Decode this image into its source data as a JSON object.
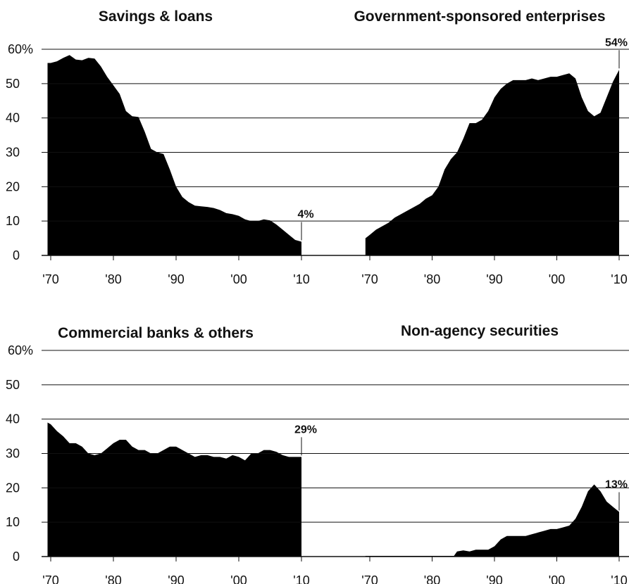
{
  "chart_data": [
    {
      "type": "area",
      "title": "Savings & loans",
      "ylabels": [
        "0",
        "10",
        "20",
        "30",
        "40",
        "50",
        "60%"
      ],
      "yticks": [
        0,
        10,
        20,
        30,
        40,
        50,
        60
      ],
      "ylim": [
        0,
        60
      ],
      "xlim": [
        1969,
        2010.5
      ],
      "xticks": [
        1970,
        1980,
        1990,
        2000,
        2010
      ],
      "xticklabels": [
        "'70",
        "'80",
        "'90",
        "'00",
        "'10"
      ],
      "x": [
        1969.5,
        1970,
        1971,
        1972,
        1973,
        1974,
        1975,
        1976,
        1977,
        1978,
        1979,
        1980,
        1981,
        1982,
        1983,
        1984,
        1985,
        1986,
        1987,
        1988,
        1989,
        1990,
        1991,
        1992,
        1993,
        1994,
        1995,
        1996,
        1997,
        1998,
        1999,
        2000,
        2001,
        2002,
        2003,
        2004,
        2005,
        2006,
        2007,
        2008,
        2009,
        2010
      ],
      "y": [
        56,
        56,
        56.5,
        57.5,
        58.3,
        57,
        56.8,
        57.5,
        57.3,
        55,
        52,
        49.5,
        47,
        42,
        40.5,
        40.3,
        36,
        31,
        30,
        29.5,
        25,
        20,
        17,
        15.5,
        14.5,
        14.3,
        14.1,
        13.8,
        13.2,
        12.3,
        12,
        11.5,
        10.5,
        10,
        10,
        10.5,
        10.2,
        9,
        7.5,
        6,
        4.5,
        4
      ],
      "annotation": {
        "label": "4%",
        "x": 2010,
        "y": 4
      }
    },
    {
      "type": "area",
      "title": "Government-sponsored enterprises",
      "ylim": [
        0,
        60
      ],
      "xlim": [
        1969,
        2010.5
      ],
      "xticks": [
        1970,
        1980,
        1990,
        2000,
        2010
      ],
      "xticklabels": [
        "'70",
        "'80",
        "'90",
        "'00",
        "'10"
      ],
      "x": [
        1969.3,
        1970,
        1971,
        1972,
        1973,
        1974,
        1975,
        1976,
        1977,
        1978,
        1979,
        1980,
        1981,
        1982,
        1983,
        1984,
        1985,
        1986,
        1987,
        1988,
        1989,
        1990,
        1991,
        1992,
        1993,
        1994,
        1995,
        1996,
        1997,
        1998,
        1999,
        2000,
        2001,
        2002,
        2003,
        2004,
        2005,
        2006,
        2007,
        2008,
        2009,
        2010
      ],
      "y": [
        5,
        6,
        7.5,
        8.5,
        9.5,
        11,
        12,
        13,
        14,
        15,
        16.5,
        17.5,
        20,
        25,
        28,
        30,
        34,
        38.5,
        38.5,
        39.5,
        42,
        46,
        48.5,
        50,
        51,
        51,
        51,
        51.5,
        51,
        51.5,
        52,
        52,
        52.5,
        53,
        51.5,
        46,
        42,
        40.5,
        41.5,
        46,
        50.5,
        54
      ],
      "annotation": {
        "label": "54%",
        "x": 2010,
        "y": 54
      }
    },
    {
      "type": "area",
      "title": "Commercial banks & others",
      "ylabels": [
        "0",
        "10",
        "20",
        "30",
        "40",
        "50",
        "60%"
      ],
      "yticks": [
        0,
        10,
        20,
        30,
        40,
        50,
        60
      ],
      "ylim": [
        0,
        60
      ],
      "xlim": [
        1969,
        2010.5
      ],
      "xticks": [
        1970,
        1980,
        1990,
        2000,
        2010
      ],
      "xticklabels": [
        "'70",
        "'80",
        "'90",
        "'00",
        "'10"
      ],
      "x": [
        1969.5,
        1970,
        1971,
        1972,
        1973,
        1974,
        1975,
        1976,
        1977,
        1978,
        1979,
        1980,
        1981,
        1982,
        1983,
        1984,
        1985,
        1986,
        1987,
        1988,
        1989,
        1990,
        1991,
        1992,
        1993,
        1994,
        1995,
        1996,
        1997,
        1998,
        1999,
        2000,
        2001,
        2002,
        2003,
        2004,
        2005,
        2006,
        2007,
        2008,
        2009,
        2010
      ],
      "y": [
        39,
        38.5,
        36.5,
        35,
        33,
        33,
        32,
        30,
        29.5,
        30,
        31.5,
        33,
        34,
        34,
        32,
        31,
        31,
        30,
        30,
        31,
        32,
        32,
        31,
        30,
        29,
        29.5,
        29.5,
        29,
        29,
        28.5,
        29.5,
        29,
        28,
        30,
        30,
        31,
        31,
        30.5,
        29.5,
        29,
        29,
        29
      ],
      "annotation": {
        "label": "29%",
        "x": 2010,
        "y": 29
      }
    },
    {
      "type": "area",
      "title": "Non-agency securities",
      "ylim": [
        0,
        60
      ],
      "xlim": [
        1969,
        2010.5
      ],
      "xticks": [
        1970,
        1980,
        1990,
        2000,
        2010
      ],
      "xticklabels": [
        "'70",
        "'80",
        "'90",
        "'00",
        "'10"
      ],
      "x": [
        1969.3,
        1983.5,
        1984,
        1985,
        1986,
        1987,
        1988,
        1989,
        1990,
        1991,
        1992,
        1993,
        1994,
        1995,
        1996,
        1997,
        1998,
        1999,
        2000,
        2001,
        2002,
        2003,
        2004,
        2005,
        2006,
        2007,
        2008,
        2009,
        2010
      ],
      "y": [
        0.2,
        0.2,
        1.5,
        1.8,
        1.5,
        2,
        2,
        2,
        3,
        5,
        6,
        6,
        6,
        6,
        6.5,
        7,
        7.5,
        8,
        8,
        8.5,
        9,
        11,
        14.5,
        19,
        21,
        19,
        16,
        14.5,
        13
      ],
      "annotation": {
        "label": "13%",
        "x": 2010,
        "y": 13
      }
    }
  ]
}
